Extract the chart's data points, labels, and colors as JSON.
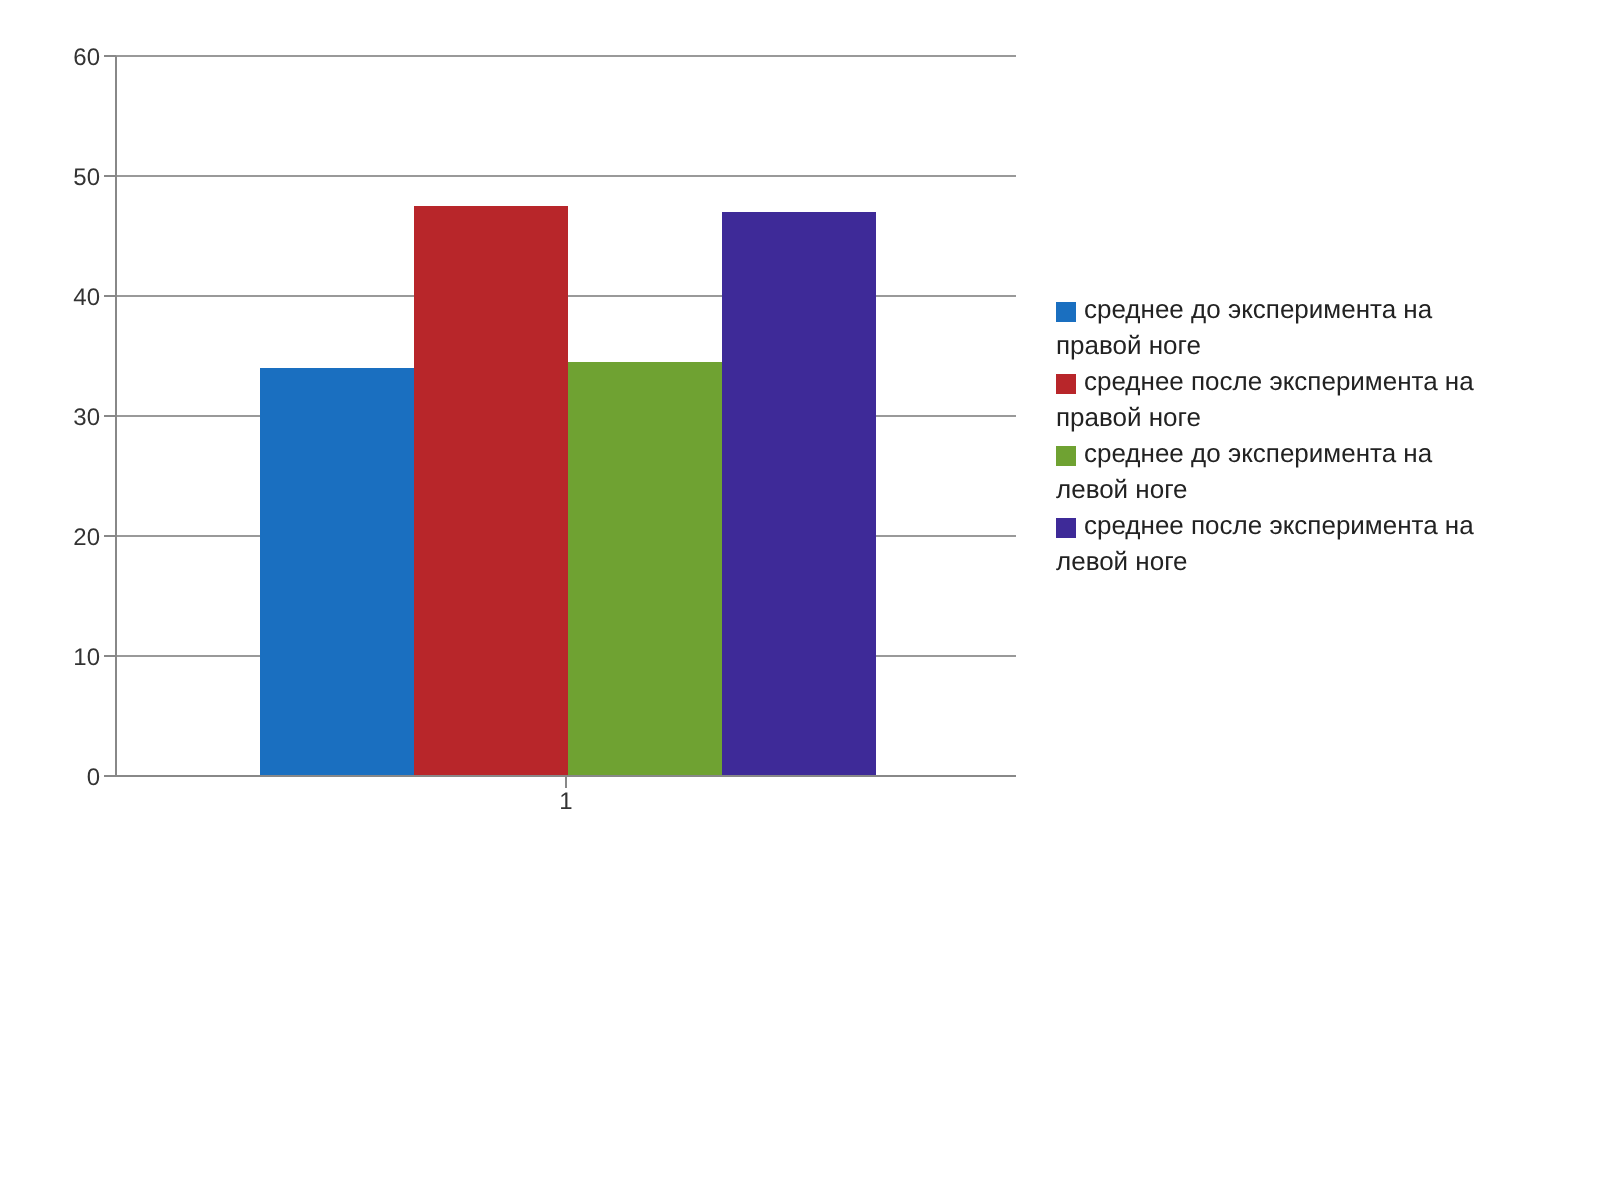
{
  "chart_data": {
    "type": "bar",
    "categories": [
      "1"
    ],
    "series": [
      {
        "name": "среднее до эксперимента на правой ноге",
        "color": "#1a6fc0",
        "values": [
          34
        ]
      },
      {
        "name": "среднее после эксперимента на правой ноге",
        "color": "#b8262a",
        "values": [
          47.5
        ]
      },
      {
        "name": "среднее до эксперимента на левой ноге",
        "color": "#6fa232",
        "values": [
          34.5
        ]
      },
      {
        "name": "среднее после эксперимента на левой ноге",
        "color": "#3e2a98",
        "values": [
          47
        ]
      }
    ],
    "ylim": [
      0,
      60
    ],
    "yticks": [
      0,
      10,
      20,
      30,
      40,
      50,
      60
    ],
    "grid": "y",
    "legend": "right"
  }
}
